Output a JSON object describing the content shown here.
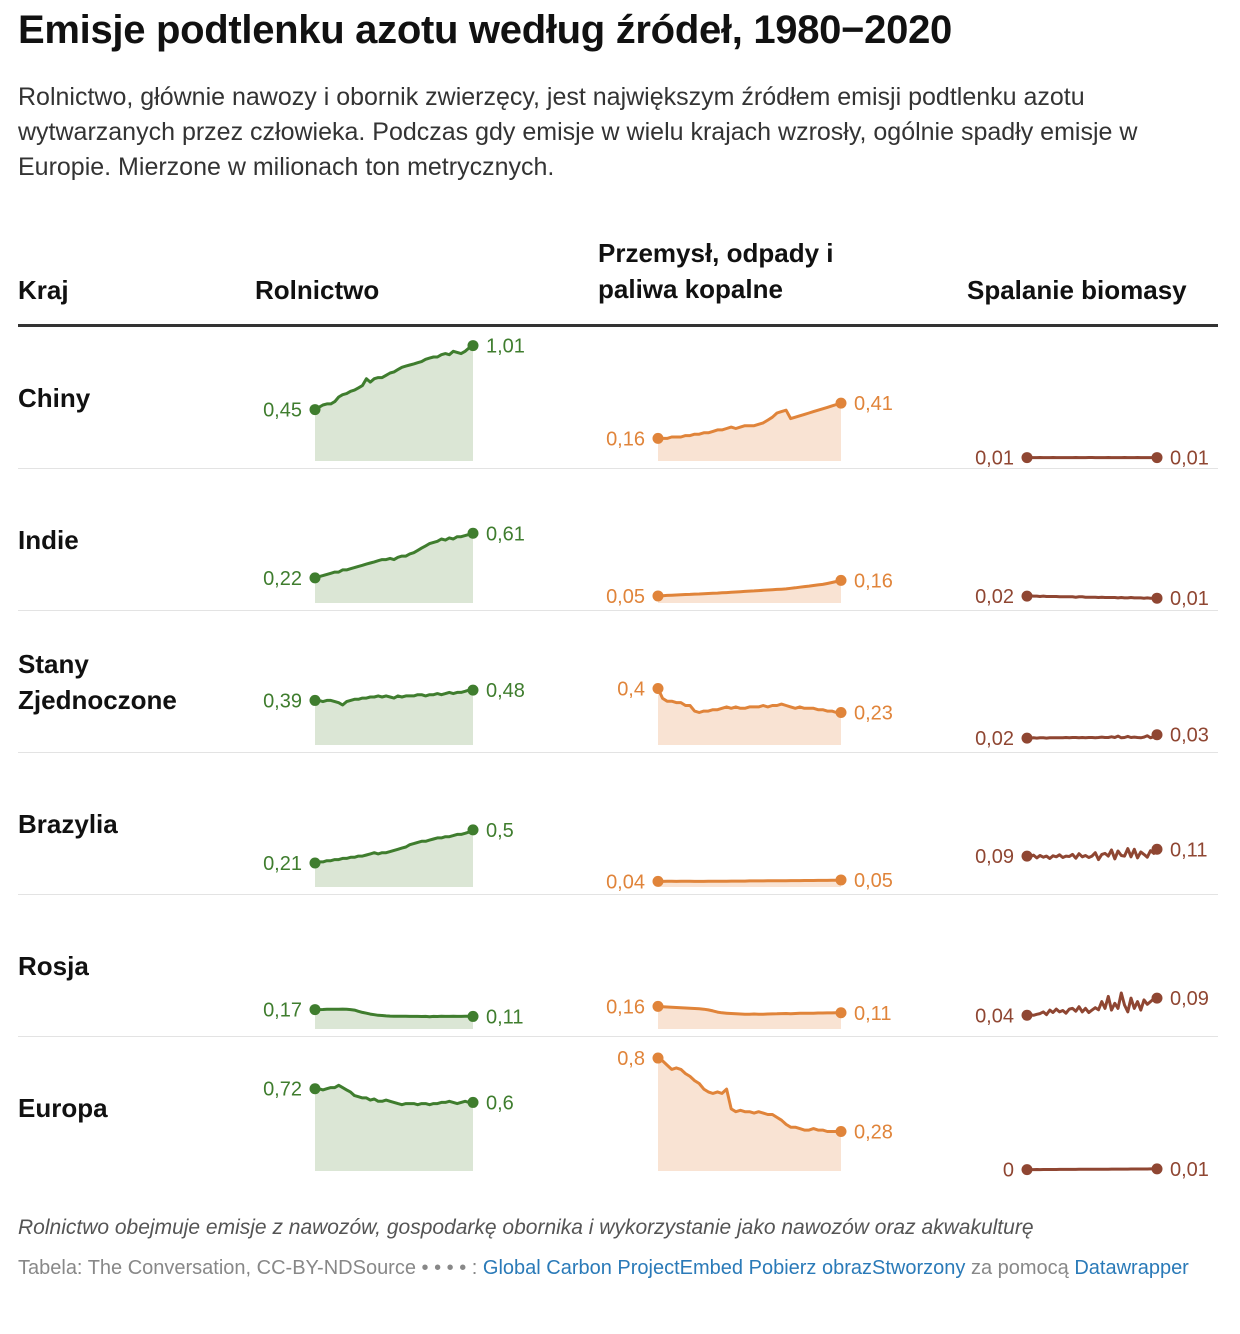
{
  "title": "Emisje podtlenku azotu według źródeł, 1980−2020",
  "subtitle": "Rolnictwo, głównie nawozy i obornik zwierzęcy, jest największym źródłem emisji podtlenku azotu wytwarzanych przez człowieka. Podczas gdy emisje w wielu krajach wzrosły, ogólnie spadły emisje w Europie. Mierzone w milionach ton metrycznych.",
  "headers": {
    "country": "Kraj",
    "agriculture": "Rolnictwo",
    "industry_line1": "Przemysł, odpady i",
    "industry_line2": "paliwa kopalne",
    "biomass": "Spalanie biomasy"
  },
  "colors": {
    "agriculture": "#3f7d2e",
    "agriculture_fill": "#dbe6d5",
    "industry": "#e0843a",
    "industry_fill": "#f9e3d3",
    "biomass": "#8f4632"
  },
  "chart_data": {
    "type": "table",
    "x_range": [
      1980,
      2020
    ],
    "units": "mln ton metrycznych",
    "rows": [
      {
        "country": "Chiny",
        "agriculture": {
          "start_label": "0,45",
          "end_label": "1,01",
          "values": [
            0.45,
            0.47,
            0.49,
            0.5,
            0.5,
            0.52,
            0.56,
            0.58,
            0.59,
            0.61,
            0.62,
            0.64,
            0.66,
            0.72,
            0.69,
            0.72,
            0.73,
            0.73,
            0.75,
            0.77,
            0.78,
            0.8,
            0.82,
            0.83,
            0.84,
            0.85,
            0.86,
            0.87,
            0.89,
            0.9,
            0.91,
            0.91,
            0.93,
            0.94,
            0.93,
            0.96,
            0.95,
            0.94,
            0.96,
            0.99,
            1.01
          ]
        },
        "industry": {
          "start_label": "0,16",
          "end_label": "0,41",
          "values": [
            0.16,
            0.16,
            0.16,
            0.17,
            0.17,
            0.17,
            0.18,
            0.18,
            0.19,
            0.19,
            0.2,
            0.2,
            0.21,
            0.22,
            0.22,
            0.23,
            0.24,
            0.23,
            0.24,
            0.25,
            0.25,
            0.25,
            0.26,
            0.27,
            0.29,
            0.31,
            0.34,
            0.35,
            0.36,
            0.3,
            0.31,
            0.32,
            0.33,
            0.34,
            0.35,
            0.36,
            0.37,
            0.38,
            0.39,
            0.4,
            0.41
          ]
        },
        "biomass": {
          "start_label": "0,01",
          "end_label": "0,01",
          "values": [
            0.01,
            0.0102,
            0.01,
            0.0099,
            0.0101,
            0.01,
            0.0098,
            0.01,
            0.0101,
            0.01,
            0.0099,
            0.01,
            0.01,
            0.0099,
            0.01,
            0.0101,
            0.01,
            0.0099,
            0.01,
            0.0101,
            0.0103,
            0.01,
            0.01,
            0.0099,
            0.01,
            0.0101,
            0.01,
            0.0099,
            0.01,
            0.01,
            0.0101,
            0.01,
            0.0099,
            0.01,
            0.0101,
            0.01,
            0.01,
            0.0099,
            0.01,
            0.01,
            0.01
          ]
        }
      },
      {
        "country": "Indie",
        "agriculture": {
          "start_label": "0,22",
          "end_label": "0,61",
          "values": [
            0.22,
            0.23,
            0.24,
            0.25,
            0.26,
            0.27,
            0.27,
            0.29,
            0.29,
            0.3,
            0.31,
            0.32,
            0.33,
            0.34,
            0.35,
            0.36,
            0.37,
            0.38,
            0.38,
            0.39,
            0.38,
            0.4,
            0.41,
            0.41,
            0.43,
            0.44,
            0.46,
            0.48,
            0.5,
            0.52,
            0.53,
            0.54,
            0.56,
            0.55,
            0.57,
            0.56,
            0.58,
            0.58,
            0.59,
            0.6,
            0.61
          ]
        },
        "industry": {
          "start_label": "0,05",
          "end_label": "0,16",
          "values": [
            0.05,
            0.052,
            0.054,
            0.055,
            0.057,
            0.058,
            0.06,
            0.061,
            0.063,
            0.064,
            0.066,
            0.067,
            0.069,
            0.07,
            0.072,
            0.074,
            0.076,
            0.078,
            0.08,
            0.082,
            0.084,
            0.086,
            0.088,
            0.09,
            0.092,
            0.094,
            0.096,
            0.098,
            0.1,
            0.104,
            0.108,
            0.112,
            0.116,
            0.12,
            0.124,
            0.128,
            0.132,
            0.138,
            0.145,
            0.152,
            0.16
          ]
        },
        "biomass": {
          "start_label": "0,02",
          "end_label": "0,01",
          "values": [
            0.02,
            0.021,
            0.02,
            0.02,
            0.019,
            0.02,
            0.019,
            0.019,
            0.019,
            0.019,
            0.018,
            0.018,
            0.018,
            0.018,
            0.018,
            0.017,
            0.018,
            0.018,
            0.017,
            0.017,
            0.017,
            0.017,
            0.016,
            0.017,
            0.016,
            0.016,
            0.016,
            0.016,
            0.015,
            0.016,
            0.015,
            0.015,
            0.016,
            0.015,
            0.015,
            0.015,
            0.014,
            0.015,
            0.014,
            0.014,
            0.014
          ]
        }
      },
      {
        "country": "Stany Zjednoczone",
        "agriculture": {
          "start_label": "0,39",
          "end_label": "0,48",
          "values": [
            0.39,
            0.39,
            0.38,
            0.39,
            0.39,
            0.38,
            0.37,
            0.35,
            0.38,
            0.39,
            0.4,
            0.4,
            0.41,
            0.41,
            0.42,
            0.42,
            0.43,
            0.42,
            0.43,
            0.42,
            0.41,
            0.43,
            0.42,
            0.43,
            0.43,
            0.43,
            0.44,
            0.44,
            0.43,
            0.44,
            0.44,
            0.45,
            0.44,
            0.45,
            0.46,
            0.45,
            0.46,
            0.46,
            0.47,
            0.48,
            0.48
          ]
        },
        "industry": {
          "start_label": "0,4",
          "end_label": "0,23",
          "values": [
            0.4,
            0.33,
            0.31,
            0.31,
            0.3,
            0.3,
            0.28,
            0.28,
            0.24,
            0.23,
            0.24,
            0.24,
            0.25,
            0.25,
            0.26,
            0.27,
            0.26,
            0.27,
            0.26,
            0.26,
            0.27,
            0.27,
            0.27,
            0.28,
            0.27,
            0.28,
            0.28,
            0.29,
            0.28,
            0.27,
            0.26,
            0.27,
            0.26,
            0.26,
            0.26,
            0.25,
            0.25,
            0.24,
            0.24,
            0.23,
            0.23
          ]
        },
        "biomass": {
          "start_label": "0,02",
          "end_label": "0,03",
          "values": [
            0.02,
            0.02,
            0.021,
            0.02,
            0.021,
            0.021,
            0.02,
            0.021,
            0.021,
            0.021,
            0.021,
            0.021,
            0.022,
            0.021,
            0.022,
            0.022,
            0.021,
            0.022,
            0.021,
            0.022,
            0.022,
            0.021,
            0.022,
            0.023,
            0.022,
            0.022,
            0.024,
            0.022,
            0.026,
            0.021,
            0.022,
            0.025,
            0.022,
            0.023,
            0.022,
            0.021,
            0.023,
            0.027,
            0.021,
            0.024,
            0.03
          ]
        }
      },
      {
        "country": "Brazylia",
        "agriculture": {
          "start_label": "0,21",
          "end_label": "0,5",
          "values": [
            0.21,
            0.22,
            0.22,
            0.23,
            0.23,
            0.24,
            0.24,
            0.25,
            0.25,
            0.26,
            0.26,
            0.27,
            0.27,
            0.28,
            0.29,
            0.3,
            0.29,
            0.3,
            0.3,
            0.31,
            0.32,
            0.33,
            0.34,
            0.35,
            0.37,
            0.38,
            0.39,
            0.4,
            0.4,
            0.41,
            0.42,
            0.43,
            0.43,
            0.44,
            0.44,
            0.45,
            0.46,
            0.46,
            0.47,
            0.48,
            0.5
          ]
        },
        "industry": {
          "start_label": "0,04",
          "end_label": "0,05",
          "values": [
            0.04,
            0.04,
            0.041,
            0.041,
            0.04,
            0.041,
            0.041,
            0.041,
            0.04,
            0.04,
            0.04,
            0.041,
            0.041,
            0.041,
            0.041,
            0.041,
            0.042,
            0.042,
            0.042,
            0.042,
            0.043,
            0.043,
            0.043,
            0.043,
            0.044,
            0.044,
            0.044,
            0.044,
            0.044,
            0.045,
            0.045,
            0.045,
            0.046,
            0.046,
            0.046,
            0.047,
            0.047,
            0.047,
            0.048,
            0.048,
            0.05
          ]
        },
        "biomass": {
          "start_label": "0,09",
          "end_label": "0,11",
          "values": [
            0.09,
            0.088,
            0.093,
            0.085,
            0.092,
            0.087,
            0.09,
            0.083,
            0.091,
            0.088,
            0.094,
            0.086,
            0.09,
            0.089,
            0.095,
            0.084,
            0.097,
            0.088,
            0.092,
            0.086,
            0.09,
            0.1,
            0.08,
            0.095,
            0.098,
            0.09,
            0.108,
            0.082,
            0.105,
            0.092,
            0.09,
            0.112,
            0.088,
            0.11,
            0.085,
            0.102,
            0.095,
            0.087,
            0.106,
            0.098,
            0.11
          ]
        }
      },
      {
        "country": "Rosja",
        "agriculture": {
          "start_label": "0,17",
          "end_label": "0,11",
          "values": [
            0.17,
            0.17,
            0.171,
            0.172,
            0.173,
            0.172,
            0.173,
            0.174,
            0.172,
            0.17,
            0.165,
            0.155,
            0.145,
            0.138,
            0.13,
            0.125,
            0.12,
            0.118,
            0.115,
            0.113,
            0.112,
            0.112,
            0.111,
            0.111,
            0.11,
            0.11,
            0.11,
            0.109,
            0.11,
            0.108,
            0.11,
            0.109,
            0.111,
            0.11,
            0.11,
            0.111,
            0.11,
            0.11,
            0.111,
            0.112,
            0.11
          ]
        },
        "industry": {
          "start_label": "0,16",
          "end_label": "0,11",
          "values": [
            0.16,
            0.158,
            0.156,
            0.154,
            0.152,
            0.151,
            0.149,
            0.147,
            0.145,
            0.143,
            0.14,
            0.135,
            0.128,
            0.12,
            0.115,
            0.112,
            0.11,
            0.108,
            0.106,
            0.105,
            0.104,
            0.106,
            0.105,
            0.104,
            0.106,
            0.107,
            0.108,
            0.109,
            0.11,
            0.108,
            0.11,
            0.111,
            0.111,
            0.112,
            0.112,
            0.113,
            0.113,
            0.114,
            0.114,
            0.115,
            0.115
          ]
        },
        "biomass": {
          "start_label": "0,04",
          "end_label": "0,09",
          "values": [
            0.04,
            0.041,
            0.04,
            0.043,
            0.045,
            0.05,
            0.042,
            0.055,
            0.048,
            0.058,
            0.05,
            0.054,
            0.046,
            0.058,
            0.06,
            0.052,
            0.065,
            0.05,
            0.06,
            0.048,
            0.055,
            0.062,
            0.056,
            0.08,
            0.06,
            0.095,
            0.055,
            0.075,
            0.06,
            0.105,
            0.07,
            0.05,
            0.09,
            0.06,
            0.08,
            0.055,
            0.085,
            0.072,
            0.08,
            0.088,
            0.09
          ]
        }
      },
      {
        "country": "Europa",
        "agriculture": {
          "start_label": "0,72",
          "end_label": "0,6",
          "values": [
            0.72,
            0.72,
            0.71,
            0.72,
            0.73,
            0.73,
            0.75,
            0.73,
            0.71,
            0.69,
            0.66,
            0.65,
            0.64,
            0.64,
            0.62,
            0.63,
            0.61,
            0.61,
            0.62,
            0.61,
            0.6,
            0.59,
            0.58,
            0.59,
            0.59,
            0.59,
            0.58,
            0.59,
            0.59,
            0.58,
            0.59,
            0.59,
            0.6,
            0.6,
            0.61,
            0.6,
            0.59,
            0.6,
            0.61,
            0.6,
            0.6
          ]
        },
        "industry": {
          "start_label": "0,8",
          "end_label": "0,28",
          "values": [
            0.8,
            0.78,
            0.75,
            0.72,
            0.73,
            0.72,
            0.69,
            0.67,
            0.64,
            0.62,
            0.58,
            0.56,
            0.55,
            0.56,
            0.55,
            0.58,
            0.44,
            0.42,
            0.43,
            0.42,
            0.42,
            0.41,
            0.42,
            0.41,
            0.4,
            0.4,
            0.38,
            0.36,
            0.33,
            0.31,
            0.31,
            0.3,
            0.29,
            0.29,
            0.3,
            0.29,
            0.29,
            0.28,
            0.28,
            0.28,
            0.28
          ]
        },
        "biomass": {
          "start_label": "0",
          "end_label": "0,01",
          "values": [
            0.004,
            0.0042,
            0.0041,
            0.0043,
            0.0042,
            0.0044,
            0.0043,
            0.0044,
            0.0045,
            0.0045,
            0.0046,
            0.0046,
            0.0047,
            0.0047,
            0.0048,
            0.0048,
            0.0049,
            0.0049,
            0.005,
            0.005,
            0.0051,
            0.0051,
            0.0052,
            0.0052,
            0.0053,
            0.0053,
            0.0054,
            0.0054,
            0.0055,
            0.0055,
            0.0056,
            0.0056,
            0.0057,
            0.0057,
            0.0058,
            0.0058,
            0.0059,
            0.0059,
            0.006,
            0.006,
            0.0061
          ]
        }
      }
    ]
  },
  "footnote": "Rolnictwo obejmuje emisje z nawozów, gospodarkę obornika i wykorzystanie jako nawozów oraz akwakulturę",
  "credits": {
    "prefix": "Tabela: The Conversation, CC-BY-NDSource • ",
    "dots": "• • • :",
    "source_link": "Global Carbon Project",
    "embed_link": "Embed",
    "download_link": "Pobierz obraz",
    "created_link": "Stworzony",
    "created_suffix": " za pomocą ",
    "tool_link": "Datawrapper"
  }
}
